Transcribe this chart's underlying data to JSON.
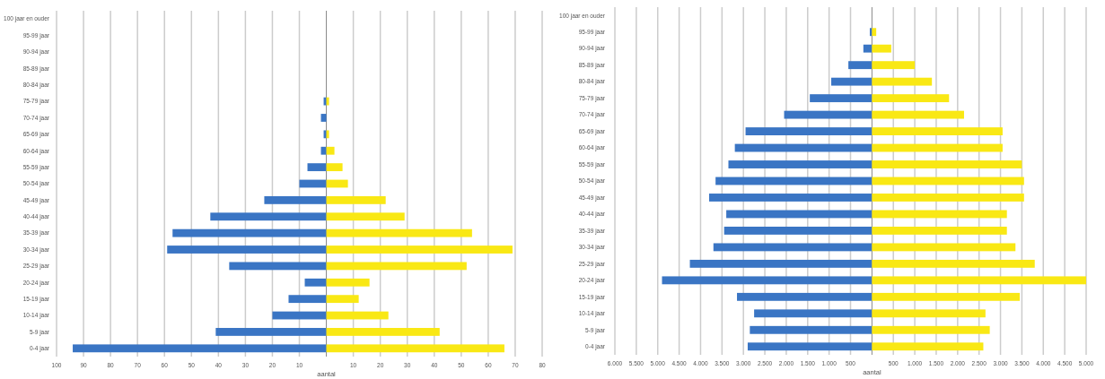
{
  "chart_data": [
    {
      "type": "bar",
      "orientation": "horizontal",
      "stacked": true,
      "xlabel": "aantal",
      "grid": "x",
      "categories": [
        "100 jaar en ouder",
        "95-99 jaar",
        "90-94 jaar",
        "85-89 jaar",
        "80-84 jaar",
        "75-79 jaar",
        "70-74 jaar",
        "65-69 jaar",
        "60-64 jaar",
        "55-59 jaar",
        "50-54 jaar",
        "45-49 jaar",
        "40-44 jaar",
        "35-39 jaar",
        "30-34 jaar",
        "25-29 jaar",
        "20-24 jaar",
        "15-19 jaar",
        "10-14 jaar",
        "5-9 jaar",
        "0-4 jaar"
      ],
      "xlim": [
        -100,
        80
      ],
      "xticks": [
        {
          "value": -100,
          "label": "100"
        },
        {
          "value": -90,
          "label": "90"
        },
        {
          "value": -80,
          "label": "80"
        },
        {
          "value": -70,
          "label": "70"
        },
        {
          "value": -60,
          "label": "60"
        },
        {
          "value": -50,
          "label": "50"
        },
        {
          "value": -40,
          "label": "40"
        },
        {
          "value": -30,
          "label": "30"
        },
        {
          "value": -20,
          "label": "20"
        },
        {
          "value": -10,
          "label": "10"
        },
        {
          "value": 0,
          "label": null
        },
        10,
        20,
        30,
        40,
        50,
        60,
        70,
        80
      ],
      "series": [
        {
          "color": "#3a75c4",
          "values": [
            0,
            0,
            0,
            0,
            0,
            -1,
            -2,
            -1,
            -2,
            -7,
            -10,
            -23,
            -43,
            -57,
            -59,
            -36,
            -8,
            -14,
            -20,
            -41,
            -94
          ]
        },
        {
          "color": "#f9e814",
          "values": [
            0,
            0,
            0,
            0,
            0,
            1,
            0,
            1,
            3,
            6,
            8,
            22,
            29,
            54,
            69,
            52,
            16,
            12,
            23,
            42,
            66
          ]
        }
      ]
    },
    {
      "type": "bar",
      "orientation": "horizontal",
      "stacked": true,
      "xlabel": "aantal",
      "grid": "x",
      "categories": [
        "100 jaar en ouder",
        "95-99 jaar",
        "90-94 jaar",
        "85-89 jaar",
        "80-84 jaar",
        "75-79 jaar",
        "70-74 jaar",
        "65-69 jaar",
        "60-64 jaar",
        "55-59 jaar",
        "50-54 jaar",
        "45-49 jaar",
        "40-44 jaar",
        "35-39 jaar",
        "30-34 jaar",
        "25-29 jaar",
        "20-24 jaar",
        "15-19 jaar",
        "10-14 jaar",
        "5-9 jaar",
        "0-4 jaar"
      ],
      "xlim": [
        -6000,
        5000
      ],
      "xticks": [
        {
          "value": -6000,
          "label": "6.000"
        },
        {
          "value": -5500,
          "label": "5.500"
        },
        {
          "value": -5000,
          "label": "5.000"
        },
        {
          "value": -4500,
          "label": "4.500"
        },
        {
          "value": -4000,
          "label": "4.000"
        },
        {
          "value": -3500,
          "label": "3.500"
        },
        {
          "value": -3000,
          "label": "3.000"
        },
        {
          "value": -2500,
          "label": "2.500"
        },
        {
          "value": -2000,
          "label": "2.000"
        },
        {
          "value": -1500,
          "label": "1.500"
        },
        {
          "value": -1000,
          "label": "1.000"
        },
        {
          "value": -500,
          "label": "500"
        },
        {
          "value": 0,
          "label": null
        },
        500,
        {
          "value": 1000,
          "label": "1.000"
        },
        {
          "value": 1500,
          "label": "1.500"
        },
        {
          "value": 2000,
          "label": "2.000"
        },
        {
          "value": 2500,
          "label": "2.500"
        },
        {
          "value": 3000,
          "label": "3.000"
        },
        {
          "value": 3500,
          "label": "3.500"
        },
        {
          "value": 4000,
          "label": "4.000"
        },
        {
          "value": 4500,
          "label": "4.500"
        },
        {
          "value": 5000,
          "label": "5.000"
        }
      ],
      "series": [
        {
          "color": "#3a75c4",
          "values": [
            0,
            -50,
            -200,
            -550,
            -950,
            -1450,
            -2050,
            -2950,
            -3200,
            -3350,
            -3650,
            -3800,
            -3400,
            -3450,
            -3700,
            -4250,
            -4900,
            -3150,
            -2750,
            -2850,
            -2900
          ]
        },
        {
          "color": "#f9e814",
          "values": [
            0,
            100,
            450,
            1000,
            1400,
            1800,
            2150,
            3050,
            3050,
            3500,
            3550,
            3550,
            3150,
            3150,
            3350,
            3800,
            5000,
            3450,
            2650,
            2750,
            2600
          ]
        }
      ]
    }
  ]
}
